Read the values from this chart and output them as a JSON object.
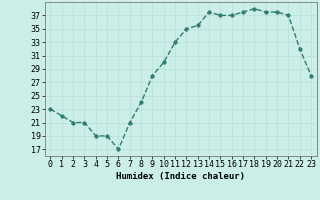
{
  "x": [
    0,
    1,
    2,
    3,
    4,
    5,
    6,
    7,
    8,
    9,
    10,
    11,
    12,
    13,
    14,
    15,
    16,
    17,
    18,
    19,
    20,
    21,
    22,
    23
  ],
  "y": [
    23,
    22,
    21,
    21,
    19,
    19,
    17,
    21,
    24,
    28,
    30,
    33,
    35,
    35.5,
    37.5,
    37,
    37,
    37.5,
    38,
    37.5,
    37.5,
    37,
    32,
    28
  ],
  "line_color": "#2e7d6e",
  "marker_color": "#2e7d6e",
  "bg_color": "#cceee8",
  "grid_color": "#b8ddd8",
  "xlabel": "Humidex (Indice chaleur)",
  "ylim": [
    16,
    39
  ],
  "xlim": [
    -0.5,
    23.5
  ],
  "yticks": [
    17,
    19,
    21,
    23,
    25,
    27,
    29,
    31,
    33,
    35,
    37
  ],
  "xticks": [
    0,
    1,
    2,
    3,
    4,
    5,
    6,
    7,
    8,
    9,
    10,
    11,
    12,
    13,
    14,
    15,
    16,
    17,
    18,
    19,
    20,
    21,
    22,
    23
  ],
  "xlabel_fontsize": 6.5,
  "tick_fontsize": 6.0,
  "marker_size": 2.5,
  "line_width": 1.0
}
